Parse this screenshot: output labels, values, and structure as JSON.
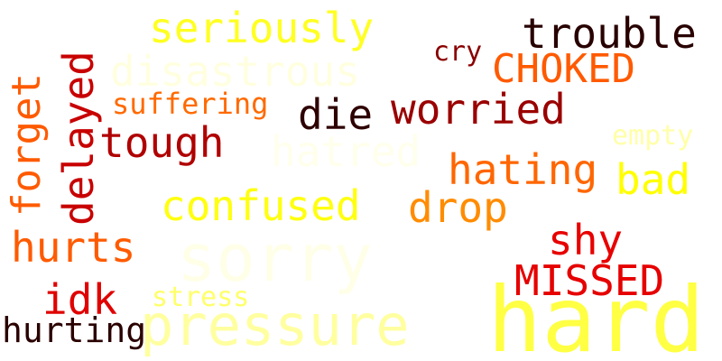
{
  "word_cloud": {
    "words": {
      "seriously": "seriously",
      "trouble": "trouble",
      "disastrous": "disastrous",
      "cry": "cry",
      "choked": "CHOKED",
      "suffering": "suffering",
      "die": "die",
      "worried": "worried",
      "tough": "tough",
      "hatred": "hatred",
      "empty": "empty",
      "hating": "hating",
      "bad": "bad",
      "confused": "confused",
      "drop": "drop",
      "forget": "forget",
      "delayed": "delayed",
      "hurts": "hurts",
      "sorry": "sorry",
      "shy": "shy",
      "missed": "MISSED",
      "idk": "idk",
      "stress": "stress",
      "pressure": "pressure",
      "hard": "hard",
      "hurting": "hurting"
    },
    "colors": {
      "background": "#ffffff",
      "dark": "#280000",
      "red": "#e00000",
      "orange": "#ff5a00",
      "yellow": "#ffff22",
      "pale": "#ffffe0"
    }
  }
}
